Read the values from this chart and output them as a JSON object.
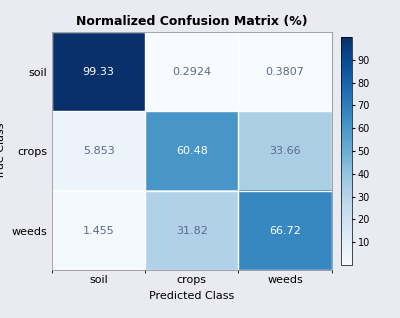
{
  "title": "Normalized Confusion Matrix (%)",
  "matrix": [
    [
      99.33,
      0.2924,
      0.3807
    ],
    [
      5.853,
      60.48,
      33.66
    ],
    [
      1.455,
      31.82,
      66.72
    ]
  ],
  "classes": [
    "soil",
    "crops",
    "weeds"
  ],
  "xlabel": "Predicted Class",
  "ylabel": "True Class",
  "cmap": "Blues",
  "vmin": 0,
  "vmax": 100,
  "colorbar_ticks": [
    10,
    20,
    30,
    40,
    50,
    60,
    70,
    80,
    90
  ],
  "text_color_threshold": 50,
  "title_fontsize": 9,
  "label_fontsize": 8,
  "tick_fontsize": 8,
  "cell_fontsize": 8,
  "colorbar_fontsize": 7,
  "bg_color": "#eaeaf2",
  "fig_bg_color": "#eaeaf2"
}
